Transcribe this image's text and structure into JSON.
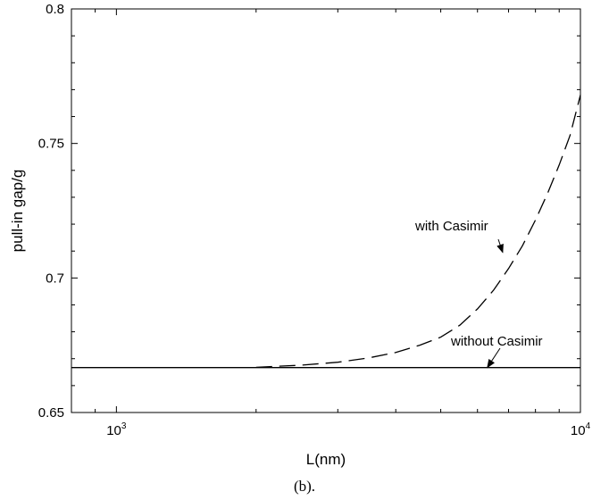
{
  "chart_data": {
    "type": "line",
    "title": "",
    "xlabel": "L(nm)",
    "ylabel": "pull-in gap/g",
    "xscale": "log",
    "xlim": [
      800,
      10000
    ],
    "ylim": [
      0.65,
      0.8
    ],
    "grid": false,
    "x_ticks": [
      {
        "base": "10",
        "exp": "3",
        "value": 1000
      },
      {
        "base": "10",
        "exp": "4",
        "value": 10000
      }
    ],
    "y_ticks": [
      {
        "label": "0.65",
        "value": 0.65
      },
      {
        "label": "0.7",
        "value": 0.7
      },
      {
        "label": "0.75",
        "value": 0.75
      },
      {
        "label": "0.8",
        "value": 0.8
      }
    ],
    "series": [
      {
        "name": "with Casimir",
        "style": "dashed",
        "color": "#000000",
        "x": [
          2000,
          2500,
          3000,
          3500,
          4000,
          4500,
          5000,
          5500,
          6000,
          6500,
          7000,
          7500,
          8000,
          8500,
          9000,
          9500,
          10000
        ],
        "y": [
          0.6668,
          0.6676,
          0.6687,
          0.6703,
          0.6723,
          0.675,
          0.678,
          0.6825,
          0.6885,
          0.6955,
          0.7035,
          0.712,
          0.7215,
          0.7315,
          0.742,
          0.753,
          0.768
        ]
      },
      {
        "name": "without Casimir",
        "style": "solid",
        "color": "#000000",
        "x": [
          800,
          10000
        ],
        "y": [
          0.6667,
          0.6667
        ]
      }
    ],
    "annotations": [
      {
        "text": "with Casimir",
        "target_x": 6800,
        "target_y": 0.7095
      },
      {
        "text": "without Casimir",
        "target_x": 6300,
        "target_y": 0.6667
      }
    ]
  },
  "caption": "(b)."
}
